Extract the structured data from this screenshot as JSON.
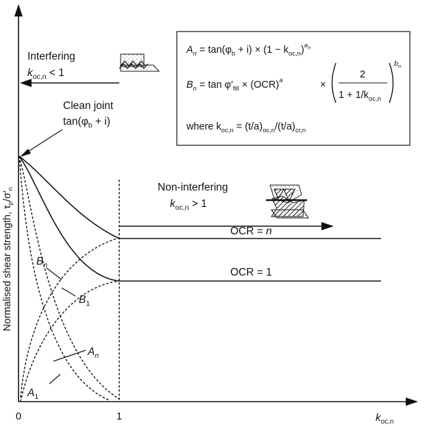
{
  "axes": {
    "x_label": "k",
    "x_label_sub": "oc,n",
    "y_label": "Normalised shear strength, τ",
    "y_label_sub": "p",
    "y_label_tail": "/σ′",
    "y_label_tail_sub": "n",
    "x_ticks": [
      "0",
      "1"
    ]
  },
  "regions": {
    "interfering": {
      "title": "Interfering",
      "cond_k": "k",
      "cond_sub": "oc,n",
      "cond_rel": " < 1"
    },
    "non_interfering": {
      "title": "Non-interfering",
      "cond_k": "k",
      "cond_sub": "oc,n",
      "cond_rel": " > 1"
    }
  },
  "clean_joint": {
    "line1": "Clean joint",
    "line2": "tan(φ",
    "line2_sub": "b",
    "line2_tail": " + i)"
  },
  "curves": {
    "ocr_n": {
      "prefix": "OCR = ",
      "value": "n"
    },
    "ocr_1": {
      "prefix": "OCR = ",
      "value": "1"
    },
    "Bn": {
      "main": "B",
      "sub": "n"
    },
    "B1": {
      "main": "B",
      "sub": "1"
    },
    "An": {
      "main": "A",
      "sub": "n"
    },
    "A1": {
      "main": "A",
      "sub": "1"
    }
  },
  "equations": {
    "eq1": {
      "lhs": "A",
      "lhs_sub": "n",
      "eq": " = tan(φ",
      "phi_sub": "b",
      "mid": " + i) × (1 − k",
      "k_sub": "oc,n",
      "close": ")",
      "exp": "a",
      "exp_sub": "n"
    },
    "eq2": {
      "lhs": "B",
      "lhs_sub": "n",
      "eq": " = tan φ′",
      "phi_sub": "fill",
      "mid": " × (OCR)",
      "exp": "a",
      "times": "×",
      "num": "2",
      "den": "1 + 1/k",
      "den_sub": "oc,n",
      "bexp": "b",
      "bexp_sub": "n"
    },
    "eq3": {
      "prefix": "where k",
      "k_sub": "oc,n",
      "mid": " = (t/a)",
      "mid_sub": "oc,n",
      "tail": "/(t/a)",
      "tail_sub": "cr,n"
    }
  }
}
